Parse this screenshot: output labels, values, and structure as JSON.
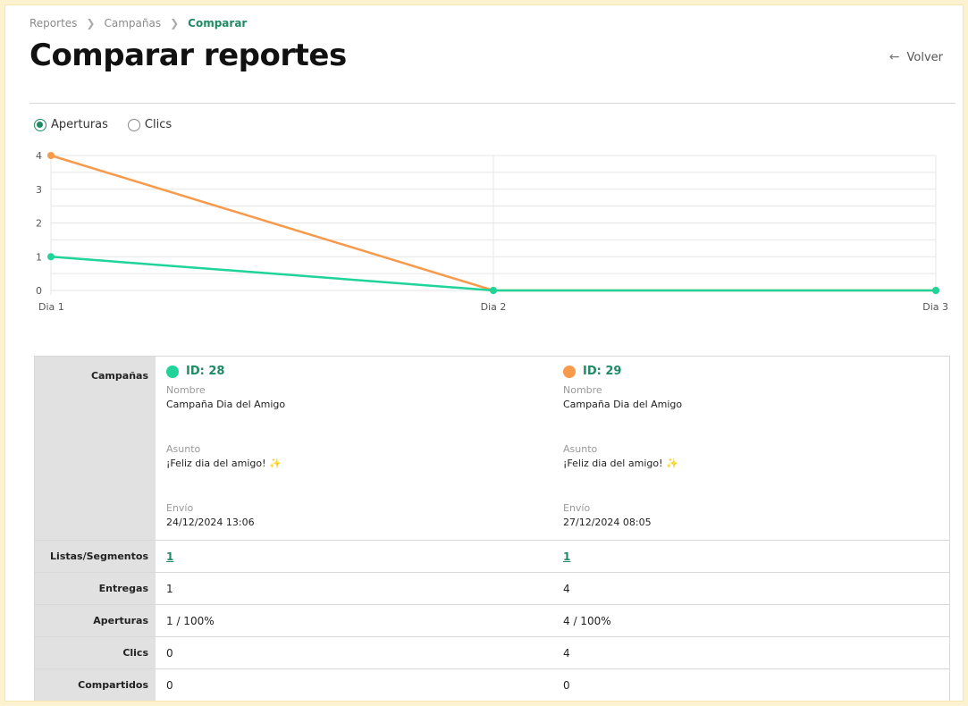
{
  "breadcrumb": {
    "items": [
      "Reportes",
      "Campañas"
    ],
    "current": "Comparar"
  },
  "page_title": "Comparar reportes",
  "back_label": "Volver",
  "metric_toggle": {
    "options": [
      "Aperturas",
      "Clics"
    ],
    "selected": "Aperturas"
  },
  "colors": {
    "accent": "#1f8a64",
    "series_a": "#1fd39a",
    "series_b": "#f79a4c"
  },
  "chart_data": {
    "type": "line",
    "categories": [
      "Dia 1",
      "Dia 2",
      "Dia 3"
    ],
    "series": [
      {
        "values": [
          1,
          0,
          0
        ],
        "color": "#1fd39a"
      },
      {
        "values": [
          4,
          0,
          0
        ],
        "color": "#f79a4c"
      }
    ],
    "yticks": [
      0,
      1,
      2,
      3,
      4
    ],
    "ylim": [
      0,
      4
    ],
    "grid": true,
    "title": "",
    "xlabel": "",
    "ylabel": ""
  },
  "table": {
    "labels": {
      "campaigns": "Campañas",
      "lists": "Listas/Segmentos",
      "deliveries": "Entregas",
      "opens": "Aperturas",
      "clicks": "Clics",
      "shared": "Compartidos"
    },
    "field_labels": {
      "name": "Nombre",
      "subject": "Asunto",
      "sent": "Envío"
    },
    "campaigns": [
      {
        "id_label": "ID: 28",
        "color": "#1fd39a",
        "name": "Campaña Dia del Amigo",
        "subject": "¡Feliz dia del amigo!",
        "subject_icon": "✨",
        "sent": "24/12/2024 13:06",
        "lists": "1",
        "deliveries": "1",
        "opens": "1 / 100%",
        "clicks": "0",
        "shared": "0"
      },
      {
        "id_label": "ID: 29",
        "color": "#f79a4c",
        "name": "Campaña Dia del Amigo",
        "subject": "¡Feliz dia del amigo!",
        "subject_icon": "✨",
        "sent": "27/12/2024 08:05",
        "lists": "1",
        "deliveries": "4",
        "opens": "4 / 100%",
        "clicks": "4",
        "shared": "0"
      }
    ]
  }
}
